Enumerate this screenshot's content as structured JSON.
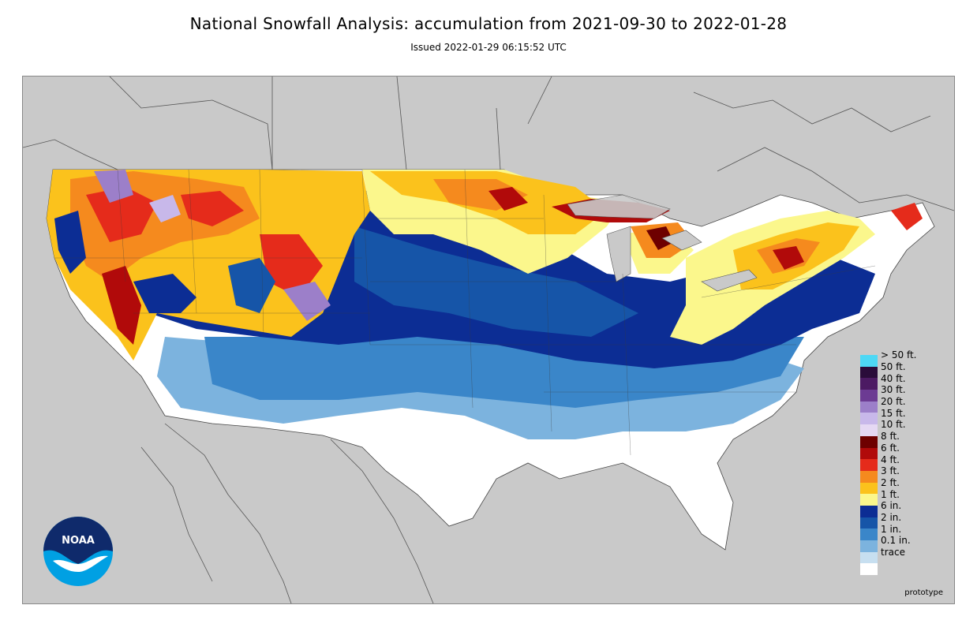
{
  "header": {
    "title": "National Snowfall Analysis: accumulation from 2021-09-30 to 2022-01-28",
    "issued": "Issued 2022-01-29 06:15:52 UTC"
  },
  "map": {
    "ocean_land_color": "#c9c9c9",
    "border_color": "#555555",
    "prototype_label": "prototype",
    "logo_text": "NOAA"
  },
  "legend": {
    "items": [
      {
        "label": "> 50 ft.",
        "color": "#4dd8f5"
      },
      {
        "label": "50 ft.",
        "color": "#2a0c3a"
      },
      {
        "label": "40 ft.",
        "color": "#4c1a63"
      },
      {
        "label": "30 ft.",
        "color": "#6c3b93"
      },
      {
        "label": "20 ft.",
        "color": "#9c7fc9"
      },
      {
        "label": "15 ft.",
        "color": "#c8b8ea"
      },
      {
        "label": "10 ft.",
        "color": "#e5d8f3"
      },
      {
        "label": "8 ft.",
        "color": "#6e0000"
      },
      {
        "label": "6 ft.",
        "color": "#b10a0a"
      },
      {
        "label": "4 ft.",
        "color": "#e52b1b"
      },
      {
        "label": "3 ft.",
        "color": "#f58a1e"
      },
      {
        "label": "2 ft.",
        "color": "#fbc21c"
      },
      {
        "label": "1 ft.",
        "color": "#fbf78c"
      },
      {
        "label": "6 in.",
        "color": "#0c2d94"
      },
      {
        "label": "2 in.",
        "color": "#1655a8"
      },
      {
        "label": "1 in.",
        "color": "#3a86c9"
      },
      {
        "label": "0.1 in.",
        "color": "#7cb3de"
      },
      {
        "label": "trace",
        "color": "#c7dff0"
      },
      {
        "label": "",
        "color": "#ffffff"
      }
    ]
  }
}
